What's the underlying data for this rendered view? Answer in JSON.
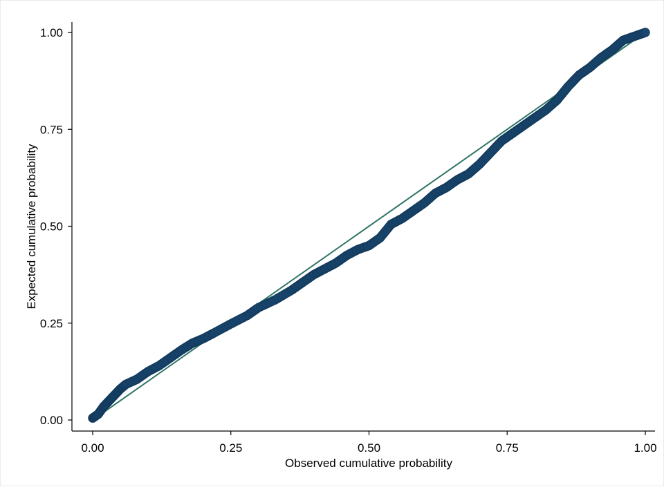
{
  "chart_data": {
    "type": "scatter",
    "xlabel": "Observed cumulative probability",
    "ylabel": "Expected cumulative probability",
    "xlim": [
      0,
      1
    ],
    "ylim": [
      0,
      1
    ],
    "x_ticks": [
      "0.00",
      "0.25",
      "0.50",
      "0.75",
      "1.00"
    ],
    "y_ticks": [
      "0.00",
      "0.25",
      "0.50",
      "0.75",
      "1.00"
    ],
    "x_tick_values": [
      0,
      0.25,
      0.5,
      0.75,
      1
    ],
    "y_tick_values": [
      0,
      0.25,
      0.5,
      0.75,
      1
    ],
    "grid": false,
    "legend": "none",
    "reference_line": {
      "x": [
        0,
        1
      ],
      "y": [
        0,
        1
      ],
      "color": "#2e7566"
    },
    "series": [
      {
        "color": "#1a476f",
        "points": [
          [
            0.0,
            0.005
          ],
          [
            0.01,
            0.015
          ],
          [
            0.02,
            0.035
          ],
          [
            0.03,
            0.05
          ],
          [
            0.04,
            0.065
          ],
          [
            0.05,
            0.08
          ],
          [
            0.06,
            0.092
          ],
          [
            0.08,
            0.105
          ],
          [
            0.1,
            0.125
          ],
          [
            0.12,
            0.14
          ],
          [
            0.14,
            0.16
          ],
          [
            0.16,
            0.18
          ],
          [
            0.18,
            0.198
          ],
          [
            0.2,
            0.21
          ],
          [
            0.22,
            0.225
          ],
          [
            0.25,
            0.248
          ],
          [
            0.28,
            0.27
          ],
          [
            0.3,
            0.29
          ],
          [
            0.33,
            0.31
          ],
          [
            0.36,
            0.335
          ],
          [
            0.38,
            0.355
          ],
          [
            0.4,
            0.375
          ],
          [
            0.42,
            0.39
          ],
          [
            0.44,
            0.405
          ],
          [
            0.46,
            0.425
          ],
          [
            0.48,
            0.44
          ],
          [
            0.5,
            0.45
          ],
          [
            0.52,
            0.47
          ],
          [
            0.54,
            0.505
          ],
          [
            0.56,
            0.52
          ],
          [
            0.58,
            0.54
          ],
          [
            0.6,
            0.56
          ],
          [
            0.62,
            0.585
          ],
          [
            0.64,
            0.6
          ],
          [
            0.66,
            0.62
          ],
          [
            0.68,
            0.635
          ],
          [
            0.7,
            0.66
          ],
          [
            0.72,
            0.69
          ],
          [
            0.74,
            0.72
          ],
          [
            0.76,
            0.74
          ],
          [
            0.78,
            0.76
          ],
          [
            0.8,
            0.78
          ],
          [
            0.82,
            0.8
          ],
          [
            0.84,
            0.825
          ],
          [
            0.86,
            0.86
          ],
          [
            0.88,
            0.89
          ],
          [
            0.9,
            0.91
          ],
          [
            0.92,
            0.935
          ],
          [
            0.94,
            0.955
          ],
          [
            0.96,
            0.98
          ],
          [
            0.98,
            0.99
          ],
          [
            1.0,
            1.0
          ]
        ]
      }
    ]
  }
}
